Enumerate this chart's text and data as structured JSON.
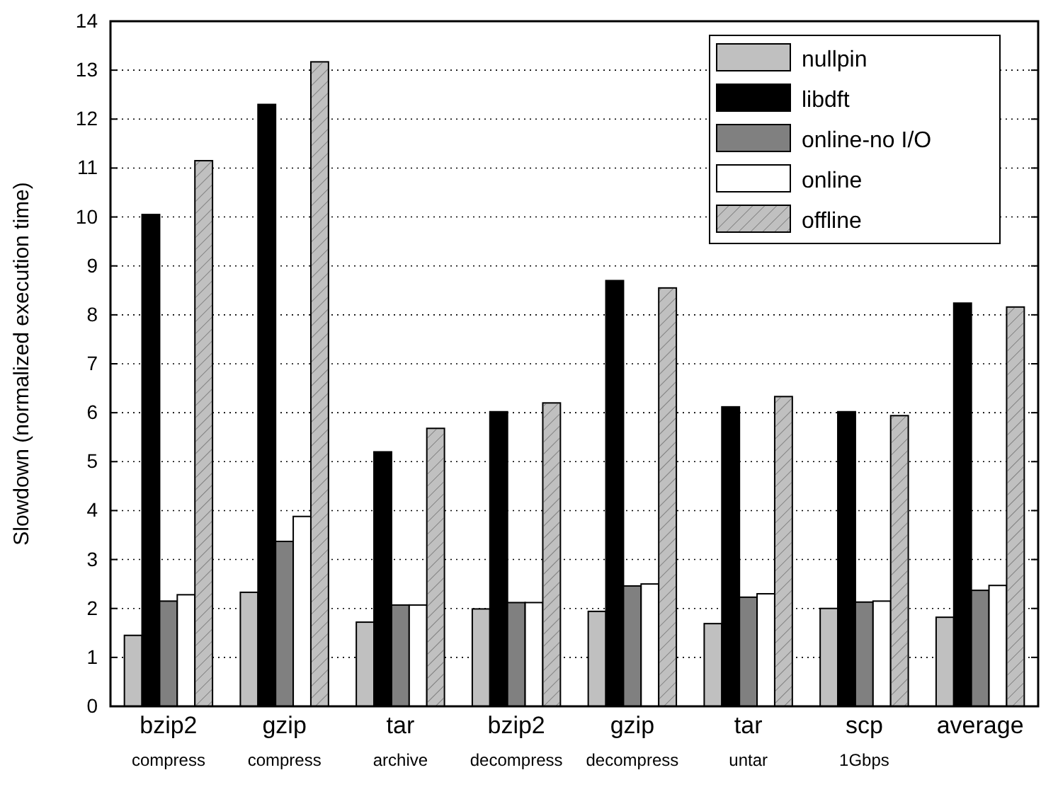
{
  "chart_data": {
    "type": "bar",
    "ylabel": "Slowdown (normalized execution time)",
    "categories": [
      "bzip2\ncompress",
      "gzip\ncompress",
      "tar\narchive",
      "bzip2\ndecompress",
      "gzip\ndecompress",
      "tar\nuntar",
      "scp\n1Gbps",
      "average"
    ],
    "series": [
      {
        "name": "nullpin",
        "color": "#c0c0c0",
        "values": [
          1.45,
          2.33,
          1.72,
          1.99,
          1.94,
          1.69,
          2.0,
          1.82
        ]
      },
      {
        "name": "libdft",
        "color": "#000000",
        "values": [
          10.05,
          12.3,
          5.2,
          6.02,
          8.7,
          6.12,
          6.02,
          8.24
        ]
      },
      {
        "name": "online-no I/O",
        "color": "#808080",
        "values": [
          2.15,
          3.37,
          2.07,
          2.12,
          2.46,
          2.23,
          2.13,
          2.37
        ]
      },
      {
        "name": "online",
        "color": "#ffffff",
        "values": [
          2.28,
          3.88,
          2.07,
          2.12,
          2.5,
          2.3,
          2.15,
          2.47
        ]
      },
      {
        "name": "offline",
        "color": "#c0c0c0",
        "values": [
          11.15,
          13.17,
          5.68,
          6.2,
          8.55,
          6.33,
          5.94,
          8.16
        ]
      }
    ],
    "ylim": [
      0,
      14
    ],
    "yticks": [
      0,
      1,
      2,
      3,
      4,
      5,
      6,
      7,
      8,
      9,
      10,
      11,
      12,
      13,
      14
    ],
    "grid": "y",
    "legend": "top right"
  }
}
